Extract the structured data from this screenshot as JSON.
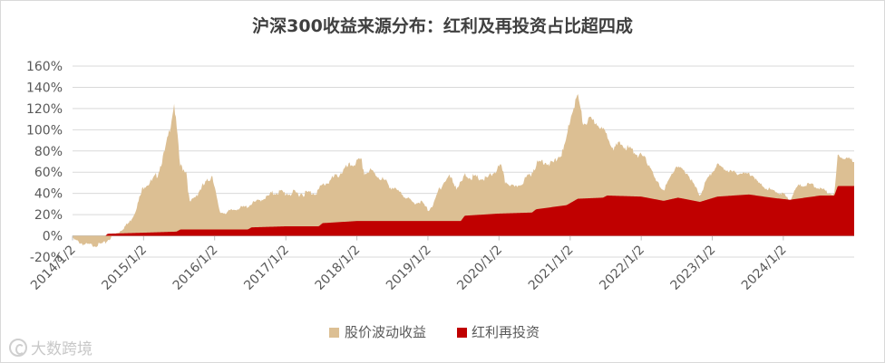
{
  "chart_data": {
    "type": "area",
    "title": "沪深300收益来源分布：红利及再投资占比超四成",
    "xlabel": "",
    "ylabel": "",
    "ylim": [
      -20,
      160
    ],
    "y_ticks": [
      "-20%",
      "0%",
      "20%",
      "40%",
      "60%",
      "80%",
      "100%",
      "120%",
      "140%",
      "160%"
    ],
    "x_ticks": [
      "2014/1/2",
      "2015/1/2",
      "2016/1/2",
      "2017/1/2",
      "2018/1/2",
      "2019/1/2",
      "2020/1/2",
      "2021/1/2",
      "2022/1/2",
      "2023/1/2",
      "2024/1/2"
    ],
    "x_range": [
      "2014/1/2",
      "2024/12/31"
    ],
    "grid": true,
    "stacked": true,
    "legend_position": "bottom",
    "colors": {
      "volatility": "#dcbf93",
      "dividend": "#c00000"
    },
    "series": [
      {
        "name": "股价波动收益",
        "points": [
          [
            "2014-01-02",
            -3
          ],
          [
            "2014-03-01",
            -8
          ],
          [
            "2014-05-01",
            -9
          ],
          [
            "2014-07-01",
            -6
          ],
          [
            "2014-09-01",
            2
          ],
          [
            "2014-10-20",
            10
          ],
          [
            "2014-11-15",
            18
          ],
          [
            "2014-12-08",
            30
          ],
          [
            "2015-01-05",
            45
          ],
          [
            "2015-02-15",
            48
          ],
          [
            "2015-03-15",
            55
          ],
          [
            "2015-04-20",
            75
          ],
          [
            "2015-05-20",
            100
          ],
          [
            "2015-06-08",
            121
          ],
          [
            "2015-06-25",
            90
          ],
          [
            "2015-07-08",
            60
          ],
          [
            "2015-08-10",
            55
          ],
          [
            "2015-08-26",
            25
          ],
          [
            "2015-09-20",
            30
          ],
          [
            "2015-10-20",
            38
          ],
          [
            "2015-11-25",
            45
          ],
          [
            "2015-12-22",
            52
          ],
          [
            "2016-01-10",
            32
          ],
          [
            "2016-01-28",
            16
          ],
          [
            "2016-03-01",
            16
          ],
          [
            "2016-05-01",
            20
          ],
          [
            "2016-07-01",
            22
          ],
          [
            "2016-09-01",
            26
          ],
          [
            "2016-11-15",
            33
          ],
          [
            "2017-01-02",
            31
          ],
          [
            "2017-04-01",
            31
          ],
          [
            "2017-06-01",
            32
          ],
          [
            "2017-08-01",
            38
          ],
          [
            "2017-10-01",
            45
          ],
          [
            "2017-11-20",
            52
          ],
          [
            "2018-01-24",
            57
          ],
          [
            "2018-02-10",
            45
          ],
          [
            "2018-03-15",
            47
          ],
          [
            "2018-05-01",
            41
          ],
          [
            "2018-07-01",
            32
          ],
          [
            "2018-09-01",
            24
          ],
          [
            "2018-10-20",
            17
          ],
          [
            "2018-12-01",
            18
          ],
          [
            "2019-01-03",
            10
          ],
          [
            "2019-02-01",
            16
          ],
          [
            "2019-03-01",
            31
          ],
          [
            "2019-04-20",
            42
          ],
          [
            "2019-06-01",
            32
          ],
          [
            "2019-07-15",
            38
          ],
          [
            "2019-09-01",
            35
          ],
          [
            "2019-11-01",
            33
          ],
          [
            "2020-01-10",
            45
          ],
          [
            "2020-02-03",
            30
          ],
          [
            "2020-03-23",
            24
          ],
          [
            "2020-05-01",
            28
          ],
          [
            "2020-07-08",
            42
          ],
          [
            "2020-08-15",
            45
          ],
          [
            "2020-09-30",
            40
          ],
          [
            "2020-11-30",
            52
          ],
          [
            "2021-01-05",
            82
          ],
          [
            "2021-02-10",
            98
          ],
          [
            "2021-03-10",
            70
          ],
          [
            "2021-04-15",
            74
          ],
          [
            "2021-05-25",
            70
          ],
          [
            "2021-06-30",
            60
          ],
          [
            "2021-08-15",
            45
          ],
          [
            "2021-09-15",
            49
          ],
          [
            "2021-11-01",
            45
          ],
          [
            "2021-12-31",
            38
          ],
          [
            "2022-02-15",
            32
          ],
          [
            "2022-03-15",
            18
          ],
          [
            "2022-04-27",
            10
          ],
          [
            "2022-06-30",
            30
          ],
          [
            "2022-08-30",
            24
          ],
          [
            "2022-10-31",
            6
          ],
          [
            "2022-12-01",
            18
          ],
          [
            "2023-01-28",
            30
          ],
          [
            "2023-03-01",
            26
          ],
          [
            "2023-05-01",
            21
          ],
          [
            "2023-07-31",
            19
          ],
          [
            "2023-09-01",
            11
          ],
          [
            "2023-10-31",
            7
          ],
          [
            "2023-12-29",
            5
          ],
          [
            "2024-02-05",
            0
          ],
          [
            "2024-03-15",
            12
          ],
          [
            "2024-05-20",
            12
          ],
          [
            "2024-07-15",
            6
          ],
          [
            "2024-09-18",
            1
          ],
          [
            "2024-09-20",
            0
          ],
          [
            "2024-10-08",
            30
          ],
          [
            "2024-11-01",
            27
          ],
          [
            "2024-12-31",
            24
          ]
        ]
      },
      {
        "name": "红利再投资",
        "points": [
          [
            "2014-01-02",
            0
          ],
          [
            "2014-06-20",
            0
          ],
          [
            "2014-07-01",
            2
          ],
          [
            "2015-01-05",
            3
          ],
          [
            "2015-06-20",
            4
          ],
          [
            "2015-07-10",
            6
          ],
          [
            "2016-01-02",
            6
          ],
          [
            "2016-06-20",
            6
          ],
          [
            "2016-07-10",
            8
          ],
          [
            "2017-01-02",
            9
          ],
          [
            "2017-06-20",
            9
          ],
          [
            "2017-07-10",
            12
          ],
          [
            "2018-01-02",
            14
          ],
          [
            "2018-06-20",
            14
          ],
          [
            "2018-07-10",
            14
          ],
          [
            "2019-01-02",
            14
          ],
          [
            "2019-06-20",
            14
          ],
          [
            "2019-07-10",
            19
          ],
          [
            "2020-01-02",
            21
          ],
          [
            "2020-06-20",
            22
          ],
          [
            "2020-07-10",
            25
          ],
          [
            "2020-12-15",
            29
          ],
          [
            "2021-02-10",
            35
          ],
          [
            "2021-06-20",
            36
          ],
          [
            "2021-07-10",
            38
          ],
          [
            "2022-01-02",
            37
          ],
          [
            "2022-04-27",
            33
          ],
          [
            "2022-07-10",
            36
          ],
          [
            "2022-10-31",
            32
          ],
          [
            "2023-01-28",
            37
          ],
          [
            "2023-07-10",
            39
          ],
          [
            "2023-10-31",
            36
          ],
          [
            "2024-02-05",
            34
          ],
          [
            "2024-07-10",
            38
          ],
          [
            "2024-09-20",
            38
          ],
          [
            "2024-10-08",
            47
          ],
          [
            "2024-12-31",
            47
          ]
        ]
      }
    ]
  },
  "legend": {
    "volatility_label": "股价波动收益",
    "dividend_label": "红利再投资"
  },
  "watermark": "大数跨境"
}
